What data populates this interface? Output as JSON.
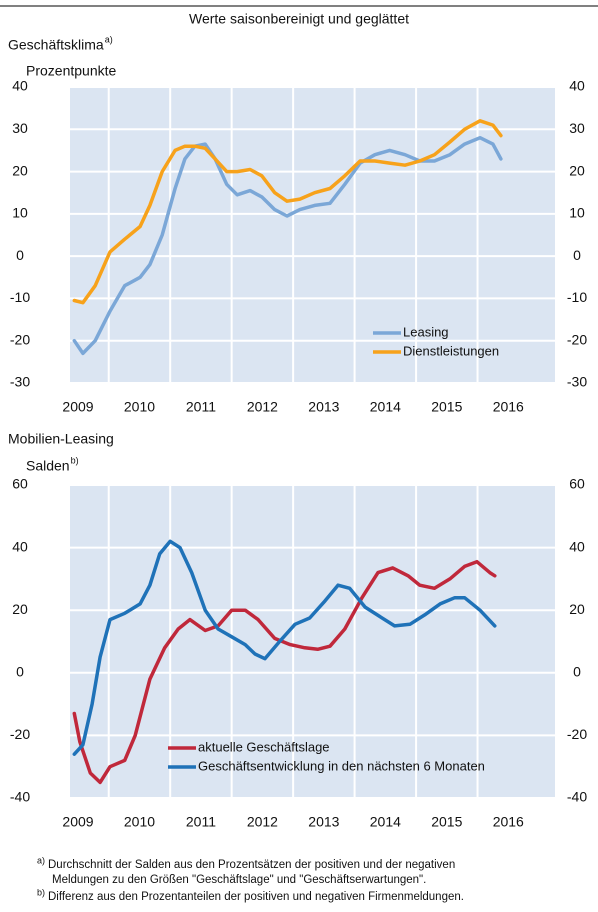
{
  "header": {
    "title": "Werte saisonbereinigt und geglättet"
  },
  "chart_data": [
    {
      "type": "line",
      "title": "Geschäftsklima",
      "title_note": "a)",
      "y_label": "Prozentpunkte",
      "xlim": [
        2009.37,
        2017.26
      ],
      "xticks": [
        2009,
        2010,
        2011,
        2012,
        2013,
        2014,
        2015,
        2016
      ],
      "ylim": [
        -30,
        40
      ],
      "yticks": [
        -30,
        -20,
        -10,
        0,
        10,
        20,
        30,
        40
      ],
      "grid": true,
      "legend": "lower right",
      "series": [
        {
          "name": "Leasing",
          "color": "#7ba7d7",
          "x": [
            2009.44,
            2009.58,
            2009.78,
            2010.02,
            2010.26,
            2010.51,
            2010.67,
            2010.87,
            2011.08,
            2011.24,
            2011.4,
            2011.57,
            2011.73,
            2011.92,
            2012.09,
            2012.3,
            2012.49,
            2012.7,
            2012.9,
            2013.11,
            2013.35,
            2013.6,
            2013.84,
            2014.09,
            2014.33,
            2014.57,
            2014.82,
            2015.06,
            2015.3,
            2015.55,
            2015.79,
            2016.04,
            2016.25,
            2016.38
          ],
          "values": [
            -20,
            -23,
            -20,
            -13,
            -7,
            -5,
            -2,
            5,
            16,
            23,
            26,
            26.5,
            23,
            17,
            14.5,
            15.5,
            14,
            11,
            9.5,
            11,
            12,
            12.5,
            17,
            22,
            24,
            25,
            24,
            22.5,
            22.5,
            24,
            26.5,
            28,
            26.5,
            23
          ]
        },
        {
          "name": "Dienstleistungen",
          "color": "#f7a21b",
          "x": [
            2009.44,
            2009.58,
            2009.78,
            2010.02,
            2010.26,
            2010.51,
            2010.67,
            2010.87,
            2011.08,
            2011.24,
            2011.4,
            2011.57,
            2011.73,
            2011.92,
            2012.09,
            2012.3,
            2012.49,
            2012.7,
            2012.9,
            2013.11,
            2013.35,
            2013.6,
            2013.84,
            2014.09,
            2014.33,
            2014.57,
            2014.82,
            2015.06,
            2015.3,
            2015.55,
            2015.79,
            2016.04,
            2016.25,
            2016.38
          ],
          "values": [
            -10.5,
            -11,
            -7,
            1,
            4,
            7,
            12,
            20,
            25,
            26,
            26,
            25.5,
            23,
            20,
            20,
            20.5,
            19,
            15,
            13,
            13.5,
            15,
            16,
            19,
            22.5,
            22.5,
            22,
            21.5,
            22.5,
            24,
            27,
            30,
            32,
            31,
            28.5
          ]
        }
      ]
    },
    {
      "type": "line",
      "title": "Mobilien-Leasing",
      "y_label": "Salden",
      "y_label_note": "b)",
      "xlim": [
        2009.37,
        2017.26
      ],
      "xticks": [
        2009,
        2010,
        2011,
        2012,
        2013,
        2014,
        2015,
        2016
      ],
      "ylim": [
        -40,
        60
      ],
      "yticks": [
        -40,
        -20,
        0,
        20,
        40,
        60
      ],
      "grid": true,
      "legend": "lower left",
      "series": [
        {
          "name": "aktuelle Geschäftslage",
          "color": "#c0283b",
          "x": [
            2009.44,
            2009.53,
            2009.7,
            2009.86,
            2010.02,
            2010.26,
            2010.43,
            2010.67,
            2010.91,
            2011.13,
            2011.32,
            2011.57,
            2011.78,
            2012.0,
            2012.22,
            2012.43,
            2012.7,
            2012.95,
            2013.19,
            2013.4,
            2013.6,
            2013.84,
            2014.12,
            2014.38,
            2014.62,
            2014.87,
            2015.06,
            2015.3,
            2015.55,
            2015.79,
            2015.99,
            2016.2,
            2016.28
          ],
          "values": [
            -13,
            -22,
            -32,
            -35,
            -30,
            -28,
            -20,
            -2,
            8,
            14,
            17,
            13.5,
            15,
            20,
            20,
            17,
            11,
            9,
            8,
            7.5,
            8.5,
            14,
            24,
            32,
            33.5,
            31,
            28,
            27,
            30,
            34,
            35.5,
            32,
            31
          ]
        },
        {
          "name": "Geschäftsentwicklung in den nächsten 6 Monaten",
          "color": "#1f72b8",
          "x": [
            2009.44,
            2009.58,
            2009.73,
            2009.86,
            2010.02,
            2010.26,
            2010.51,
            2010.67,
            2010.83,
            2011.0,
            2011.16,
            2011.35,
            2011.57,
            2011.78,
            2012.0,
            2012.22,
            2012.38,
            2012.54,
            2012.78,
            2013.03,
            2013.27,
            2013.52,
            2013.73,
            2013.92,
            2014.17,
            2014.41,
            2014.65,
            2014.9,
            2015.14,
            2015.39,
            2015.63,
            2015.79,
            2016.04,
            2016.28
          ],
          "values": [
            -26,
            -23,
            -10,
            5,
            17,
            19,
            22,
            28,
            38,
            42,
            40,
            32,
            20,
            14,
            11.5,
            9,
            6,
            4.5,
            10,
            15.5,
            17.5,
            23,
            28,
            27,
            21,
            18,
            15,
            15.5,
            18.5,
            22,
            24,
            24,
            20,
            15
          ]
        }
      ]
    }
  ],
  "footnotes": [
    {
      "marker": "a)",
      "lines": [
        "Durchschnitt der Salden aus den Prozentsätzen der positiven und der negativen",
        "Meldungen zu den Größen  \"Geschäftslage\"  und \"Geschäftserwartungen\"."
      ]
    },
    {
      "marker": "b)",
      "lines": [
        "Differenz aus den Prozentanteilen der positiven und negativen Firmenmeldungen."
      ]
    }
  ]
}
